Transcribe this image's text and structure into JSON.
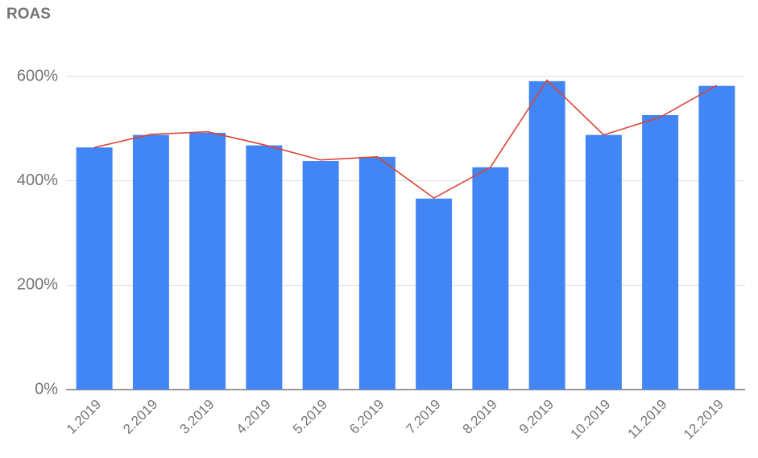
{
  "chart_data": {
    "type": "bar",
    "title": "ROAS",
    "categories": [
      "1.2019",
      "2.2019",
      "3.2019",
      "4.2019",
      "5.2019",
      "6.2019",
      "7.2019",
      "8.2019",
      "9.2019",
      "10.2019",
      "11.2019",
      "12.2019"
    ],
    "series": [
      {
        "type": "bar",
        "color": "#4285f4",
        "values": [
          464,
          488,
          492,
          468,
          438,
          446,
          366,
          426,
          591,
          488,
          526,
          582
        ]
      },
      {
        "type": "line",
        "color": "#db4437",
        "values": [
          464,
          489,
          494,
          469,
          440,
          446,
          367,
          426,
          593,
          488,
          522,
          583
        ]
      }
    ],
    "ylim": [
      0,
      600
    ],
    "yticks": [
      {
        "value": 0,
        "label": "0%"
      },
      {
        "value": 200,
        "label": "200%"
      },
      {
        "value": 400,
        "label": "400%"
      },
      {
        "value": 600,
        "label": "600%"
      }
    ],
    "grid": true
  }
}
